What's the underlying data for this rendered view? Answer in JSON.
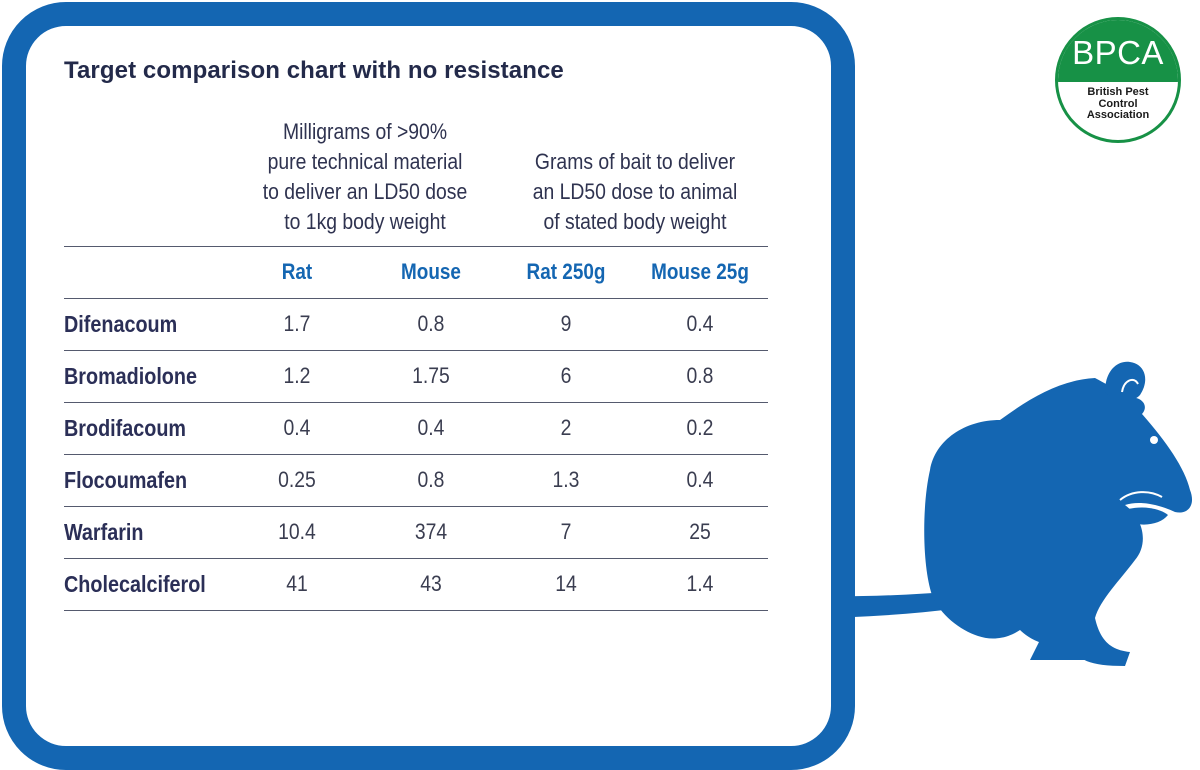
{
  "chart_data": {
    "type": "table",
    "title": "Target comparison chart with no resistance",
    "column_groups": [
      {
        "label_lines": [
          "Milligrams of >90%",
          "pure technical material",
          "to deliver an LD50 dose",
          "to 1kg body weight"
        ],
        "columns": [
          "Rat",
          "Mouse"
        ]
      },
      {
        "label_lines": [
          "Grams of bait to deliver",
          "an LD50 dose to animal",
          "of stated body weight"
        ],
        "columns": [
          "Rat 250g",
          "Mouse 25g"
        ]
      }
    ],
    "columns": [
      "Rat",
      "Mouse",
      "Rat 250g",
      "Mouse 25g"
    ],
    "rows": [
      {
        "label": "Difenacoum",
        "values": [
          "1.7",
          "0.8",
          "9",
          "0.4"
        ]
      },
      {
        "label": "Bromadiolone",
        "values": [
          "1.2",
          "1.75",
          "6",
          "0.8"
        ]
      },
      {
        "label": "Brodifacoum",
        "values": [
          "0.4",
          "0.4",
          "2",
          "0.2"
        ]
      },
      {
        "label": "Flocoumafen",
        "values": [
          "0.25",
          "0.8",
          "1.3",
          "0.4"
        ]
      },
      {
        "label": "Warfarin",
        "values": [
          "10.4",
          "374",
          "7",
          "25"
        ]
      },
      {
        "label": "Cholecalciferol",
        "values": [
          "41",
          "43",
          "14",
          "1.4"
        ]
      }
    ]
  },
  "logo": {
    "acronym": "BPCA",
    "name_lines": [
      "British Pest",
      "Control",
      "Association"
    ]
  },
  "colors": {
    "frame_blue": "#1466b2",
    "header_blue": "#1466b2",
    "logo_green": "#179146",
    "text_dark": "#2b2f57"
  },
  "decorations": {
    "mouse_silhouette": "mouse-icon"
  }
}
